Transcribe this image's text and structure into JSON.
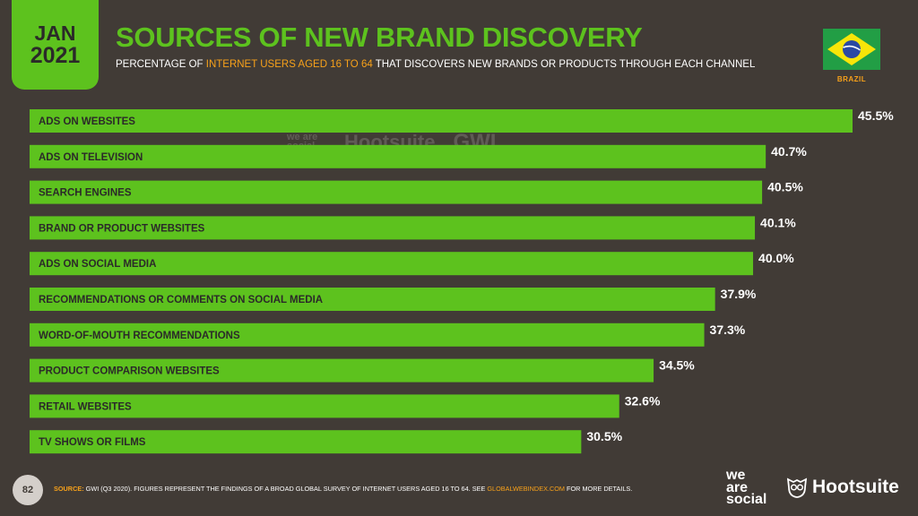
{
  "header": {
    "month": "JAN",
    "year": "2021",
    "title": "SOURCES OF NEW BRAND DISCOVERY",
    "subtitle_pre": "PERCENTAGE OF ",
    "subtitle_highlight": "INTERNET USERS AGED 16 TO 64",
    "subtitle_post": " THAT DISCOVERS NEW BRANDS OR PRODUCTS THROUGH EACH CHANNEL",
    "country": "BRAZIL"
  },
  "watermark": {
    "we_are_social": "we are social",
    "hootsuite": "Hootsuite",
    "gwi": "GWI."
  },
  "footer": {
    "page_number": "82",
    "source_label": "SOURCE:",
    "source_text": " GWI (Q3 2020). FIGURES REPRESENT THE FINDINGS OF A BROAD GLOBAL SURVEY OF INTERNET USERS AGED 16 TO 64. SEE ",
    "source_link": "GLOBALWEBINDEX.COM",
    "source_end": " FOR MORE DETAILS.",
    "logo_we": "we",
    "logo_are": "are",
    "logo_social": "social",
    "logo_hootsuite": "Hootsuite"
  },
  "colors": {
    "background": "#413b36",
    "bar": "#5dc21e",
    "accent": "#f7a11a"
  },
  "chart_data": {
    "type": "bar",
    "orientation": "horizontal",
    "title": "SOURCES OF NEW BRAND DISCOVERY",
    "categories": [
      "ADS ON WEBSITES",
      "ADS ON TELEVISION",
      "SEARCH ENGINES",
      "BRAND OR PRODUCT WEBSITES",
      "ADS ON SOCIAL MEDIA",
      "RECOMMENDATIONS OR COMMENTS ON SOCIAL MEDIA",
      "WORD-OF-MOUTH RECOMMENDATIONS",
      "PRODUCT COMPARISON WEBSITES",
      "RETAIL WEBSITES",
      "TV SHOWS OR FILMS"
    ],
    "values": [
      45.5,
      40.7,
      40.5,
      40.1,
      40.0,
      37.9,
      37.3,
      34.5,
      32.6,
      30.5
    ],
    "value_labels": [
      "45.5%",
      "40.7%",
      "40.5%",
      "40.1%",
      "40.0%",
      "37.9%",
      "37.3%",
      "34.5%",
      "32.6%",
      "30.5%"
    ],
    "xlim": [
      0,
      45.5
    ],
    "grid": false,
    "legend": "none"
  }
}
